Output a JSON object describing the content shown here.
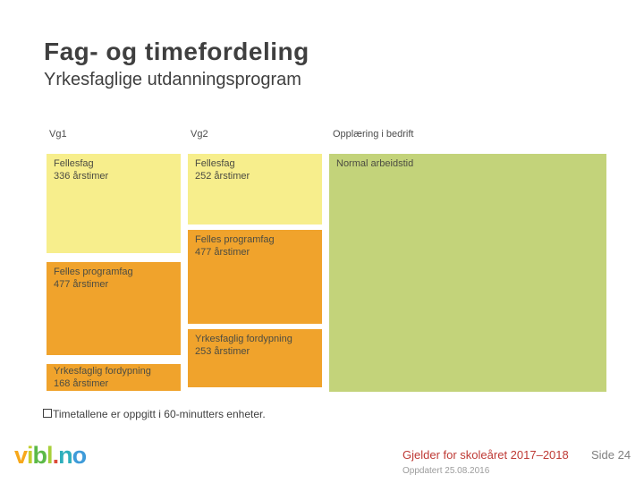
{
  "slide": {
    "title": "Fag- og timefordeling",
    "subtitle": "Yrkesfaglige utdanningsprogram"
  },
  "columns": [
    {
      "header": "Vg1",
      "blocks": [
        {
          "label": "Fellesfag",
          "hours": "336 årstimer",
          "type": "fellesfag"
        },
        {
          "label": "Felles programfag",
          "hours": "477 årstimer",
          "type": "programfag"
        },
        {
          "label": "Yrkesfaglig fordypning",
          "hours": "168 årstimer",
          "type": "fordypning"
        }
      ]
    },
    {
      "header": "Vg2",
      "blocks": [
        {
          "label": "Fellesfag",
          "hours": "252 årstimer",
          "type": "fellesfag"
        },
        {
          "label": "Felles programfag",
          "hours": "477 årstimer",
          "type": "programfag"
        },
        {
          "label": "Yrkesfaglig fordypning",
          "hours": "253 årstimer",
          "type": "fordypning"
        }
      ]
    },
    {
      "header": "Opplæring i bedrift",
      "blocks": [
        {
          "label": "Normal arbeidstid",
          "hours": "",
          "type": "bedrift"
        }
      ]
    }
  ],
  "note": {
    "bullet_icon": "square-outline",
    "text": "Timetallene er oppgitt i 60-minutters enheter."
  },
  "footer": {
    "logo_text": "vibl.no",
    "logo_letters": [
      {
        "char": "v",
        "color": "#f7a81b"
      },
      {
        "char": "i",
        "color": "#c3ce2d"
      },
      {
        "char": "b",
        "color": "#5cb947"
      },
      {
        "char": "l",
        "color": "#a8cf3a"
      },
      {
        "char": ".",
        "color": "#dd4b39"
      },
      {
        "char": "n",
        "color": "#2eafbc"
      },
      {
        "char": "o",
        "color": "#3e9bd9"
      }
    ],
    "validity": "Gjelder for skoleåret 2017–2018",
    "page": "Side 24",
    "updated": "Oppdatert 25.08.2016"
  },
  "colors": {
    "fellesfag_yellow": "#f7ee8c",
    "programfag_orange": "#f0a32c",
    "bedrift_green": "#c3d37a",
    "accent_red": "#be3934",
    "text_dark": "#3f3f3f",
    "block_text": "#4c4c42",
    "footer_gray": "#808080",
    "updated_gray": "#9c9c9c"
  }
}
